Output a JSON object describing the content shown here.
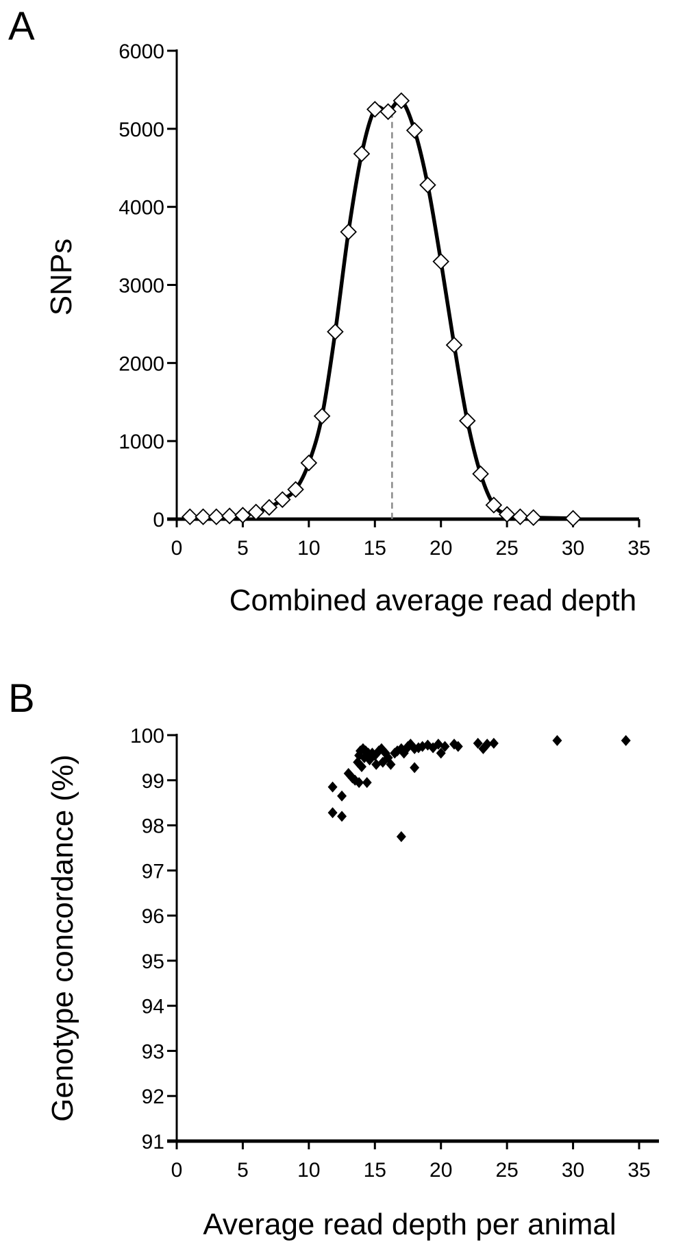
{
  "chart_data": [
    {
      "panel": "A",
      "type": "scatter",
      "xlabel": "Combined average read depth",
      "ylabel": "SNPs",
      "xlim": [
        0,
        35
      ],
      "ylim": [
        0,
        6000
      ],
      "x_ticks": [
        0,
        5,
        10,
        15,
        20,
        25,
        30,
        35
      ],
      "y_ticks": [
        0,
        1000,
        2000,
        3000,
        4000,
        5000,
        6000
      ],
      "marker": "open-diamond",
      "smooth_line": true,
      "reference_line_x": 16.3,
      "x": [
        1,
        2,
        3,
        4,
        5,
        6,
        7,
        8,
        9,
        10,
        11,
        12,
        13,
        14,
        15,
        16,
        17,
        18,
        19,
        20,
        21,
        22,
        23,
        24,
        25,
        26,
        27,
        30
      ],
      "y": [
        30,
        30,
        30,
        40,
        50,
        90,
        150,
        250,
        380,
        720,
        1320,
        2400,
        3680,
        4680,
        5250,
        5220,
        5360,
        4980,
        4280,
        3300,
        2230,
        1260,
        580,
        180,
        60,
        30,
        20,
        10
      ]
    },
    {
      "panel": "B",
      "type": "scatter",
      "xlabel": "Average read depth per animal",
      "ylabel": "Genotype concordance (%)",
      "xlim": [
        0,
        35
      ],
      "ylim": [
        91,
        100
      ],
      "x_ticks": [
        0,
        5,
        10,
        15,
        20,
        25,
        30,
        35
      ],
      "y_ticks": [
        91,
        92,
        93,
        94,
        95,
        96,
        97,
        98,
        99,
        100
      ],
      "marker": "filled-diamond",
      "points": [
        [
          11.8,
          98.85
        ],
        [
          11.8,
          98.28
        ],
        [
          12.5,
          98.65
        ],
        [
          12.5,
          98.2
        ],
        [
          13.0,
          99.15
        ],
        [
          13.3,
          99.05
        ],
        [
          13.5,
          99.0
        ],
        [
          13.7,
          99.4
        ],
        [
          13.8,
          99.55
        ],
        [
          13.8,
          98.95
        ],
        [
          13.9,
          99.65
        ],
        [
          14.0,
          99.3
        ],
        [
          14.1,
          99.7
        ],
        [
          14.2,
          99.5
        ],
        [
          14.3,
          99.65
        ],
        [
          14.4,
          98.95
        ],
        [
          14.5,
          99.6
        ],
        [
          14.6,
          99.45
        ],
        [
          14.8,
          99.6
        ],
        [
          15.0,
          99.55
        ],
        [
          15.1,
          99.35
        ],
        [
          15.3,
          99.65
        ],
        [
          15.5,
          99.7
        ],
        [
          15.6,
          99.4
        ],
        [
          15.8,
          99.6
        ],
        [
          16.0,
          99.5
        ],
        [
          16.2,
          99.35
        ],
        [
          16.5,
          99.6
        ],
        [
          16.7,
          99.65
        ],
        [
          17.0,
          97.75
        ],
        [
          17.0,
          99.7
        ],
        [
          17.2,
          99.6
        ],
        [
          17.4,
          99.7
        ],
        [
          17.5,
          99.75
        ],
        [
          17.7,
          99.8
        ],
        [
          18.0,
          99.7
        ],
        [
          18.0,
          99.28
        ],
        [
          18.3,
          99.72
        ],
        [
          18.6,
          99.75
        ],
        [
          19.0,
          99.78
        ],
        [
          19.4,
          99.72
        ],
        [
          19.8,
          99.8
        ],
        [
          20.0,
          99.6
        ],
        [
          20.3,
          99.75
        ],
        [
          21.0,
          99.8
        ],
        [
          21.3,
          99.75
        ],
        [
          22.8,
          99.82
        ],
        [
          23.2,
          99.7
        ],
        [
          23.5,
          99.8
        ],
        [
          24.0,
          99.82
        ],
        [
          28.8,
          99.88
        ],
        [
          34.0,
          99.88
        ]
      ]
    }
  ]
}
